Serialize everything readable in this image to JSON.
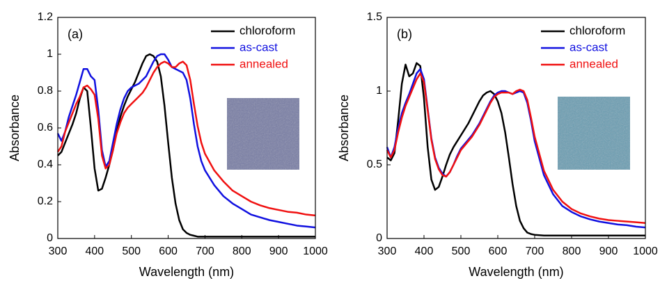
{
  "chart_data": [
    {
      "type": "line",
      "annotation": "(a)",
      "xlabel": "Wavelength (nm)",
      "ylabel": "Absorbance",
      "xlim": [
        300,
        1000
      ],
      "ylim": [
        0,
        1.2
      ],
      "xticks": [
        300,
        400,
        500,
        600,
        700,
        800,
        900,
        1000
      ],
      "yticks": [
        0,
        0.2,
        0.4,
        0.6,
        0.8,
        1,
        1.2
      ],
      "legend": "upper right",
      "x": [
        300,
        310,
        320,
        330,
        340,
        350,
        360,
        370,
        380,
        390,
        400,
        410,
        420,
        430,
        440,
        450,
        460,
        470,
        480,
        490,
        500,
        510,
        520,
        530,
        540,
        550,
        560,
        570,
        580,
        590,
        600,
        610,
        620,
        630,
        640,
        650,
        660,
        670,
        680,
        690,
        700,
        725,
        750,
        775,
        800,
        825,
        850,
        875,
        900,
        925,
        950,
        975,
        1000
      ],
      "series": [
        {
          "name": "chloroform",
          "color": "#000000",
          "values": [
            0.45,
            0.47,
            0.52,
            0.57,
            0.62,
            0.68,
            0.76,
            0.82,
            0.8,
            0.6,
            0.38,
            0.26,
            0.27,
            0.33,
            0.4,
            0.48,
            0.58,
            0.66,
            0.72,
            0.77,
            0.81,
            0.85,
            0.9,
            0.95,
            0.99,
            1.0,
            0.99,
            0.96,
            0.88,
            0.72,
            0.52,
            0.33,
            0.19,
            0.1,
            0.05,
            0.03,
            0.02,
            0.015,
            0.01,
            0.01,
            0.01,
            0.01,
            0.01,
            0.01,
            0.01,
            0.01,
            0.01,
            0.01,
            0.01,
            0.01,
            0.01,
            0.01,
            0.01
          ]
        },
        {
          "name": "as-cast",
          "color": "#1010e0",
          "values": [
            0.57,
            0.53,
            0.58,
            0.66,
            0.72,
            0.78,
            0.85,
            0.92,
            0.92,
            0.88,
            0.86,
            0.7,
            0.48,
            0.39,
            0.42,
            0.52,
            0.62,
            0.7,
            0.76,
            0.8,
            0.82,
            0.83,
            0.84,
            0.86,
            0.88,
            0.92,
            0.96,
            0.99,
            1.0,
            1.0,
            0.97,
            0.93,
            0.92,
            0.91,
            0.9,
            0.86,
            0.76,
            0.62,
            0.5,
            0.42,
            0.37,
            0.29,
            0.23,
            0.19,
            0.16,
            0.13,
            0.115,
            0.1,
            0.09,
            0.08,
            0.07,
            0.065,
            0.06
          ]
        },
        {
          "name": "annealed",
          "color": "#f01010",
          "values": [
            0.47,
            0.5,
            0.58,
            0.63,
            0.68,
            0.73,
            0.77,
            0.82,
            0.83,
            0.81,
            0.78,
            0.65,
            0.45,
            0.38,
            0.4,
            0.48,
            0.57,
            0.63,
            0.68,
            0.71,
            0.73,
            0.75,
            0.77,
            0.79,
            0.82,
            0.86,
            0.9,
            0.93,
            0.95,
            0.96,
            0.95,
            0.93,
            0.93,
            0.95,
            0.96,
            0.94,
            0.86,
            0.73,
            0.61,
            0.52,
            0.46,
            0.37,
            0.31,
            0.26,
            0.23,
            0.2,
            0.18,
            0.165,
            0.155,
            0.145,
            0.14,
            0.13,
            0.125
          ]
        }
      ]
    },
    {
      "type": "line",
      "annotation": "(b)",
      "xlabel": "Wavelength (nm)",
      "ylabel": "Absorbance",
      "xlim": [
        300,
        1000
      ],
      "ylim": [
        0,
        1.5
      ],
      "xticks": [
        300,
        400,
        500,
        600,
        700,
        800,
        900,
        1000
      ],
      "yticks": [
        0,
        0.5,
        1,
        1.5
      ],
      "legend": "upper right",
      "x": [
        300,
        310,
        320,
        330,
        340,
        350,
        360,
        370,
        380,
        390,
        400,
        410,
        420,
        430,
        440,
        450,
        460,
        470,
        480,
        490,
        500,
        510,
        520,
        530,
        540,
        550,
        560,
        570,
        580,
        590,
        600,
        610,
        620,
        630,
        640,
        650,
        660,
        670,
        680,
        690,
        700,
        725,
        750,
        775,
        800,
        825,
        850,
        875,
        900,
        925,
        950,
        975,
        1000
      ],
      "series": [
        {
          "name": "chloroform",
          "color": "#000000",
          "values": [
            0.55,
            0.53,
            0.58,
            0.8,
            1.05,
            1.18,
            1.1,
            1.12,
            1.19,
            1.17,
            0.95,
            0.62,
            0.4,
            0.33,
            0.35,
            0.42,
            0.5,
            0.57,
            0.62,
            0.66,
            0.7,
            0.74,
            0.78,
            0.83,
            0.88,
            0.93,
            0.97,
            0.99,
            1.0,
            0.98,
            0.93,
            0.85,
            0.72,
            0.55,
            0.37,
            0.22,
            0.12,
            0.07,
            0.04,
            0.03,
            0.025,
            0.02,
            0.02,
            0.02,
            0.02,
            0.02,
            0.02,
            0.02,
            0.02,
            0.02,
            0.02,
            0.02,
            0.02
          ]
        },
        {
          "name": "as-cast",
          "color": "#1010e0",
          "values": [
            0.62,
            0.55,
            0.62,
            0.75,
            0.85,
            0.92,
            0.98,
            1.05,
            1.12,
            1.15,
            1.08,
            0.88,
            0.68,
            0.55,
            0.48,
            0.44,
            0.42,
            0.45,
            0.5,
            0.56,
            0.61,
            0.64,
            0.67,
            0.7,
            0.74,
            0.78,
            0.83,
            0.88,
            0.93,
            0.97,
            0.99,
            1.0,
            1.0,
            0.99,
            0.98,
            0.99,
            1.0,
            0.99,
            0.92,
            0.8,
            0.66,
            0.43,
            0.3,
            0.22,
            0.18,
            0.15,
            0.13,
            0.115,
            0.105,
            0.095,
            0.09,
            0.08,
            0.075
          ]
        },
        {
          "name": "annealed",
          "color": "#f01010",
          "values": [
            0.6,
            0.55,
            0.6,
            0.72,
            0.82,
            0.9,
            0.96,
            1.02,
            1.08,
            1.12,
            1.06,
            0.87,
            0.67,
            0.54,
            0.47,
            0.43,
            0.42,
            0.45,
            0.5,
            0.55,
            0.6,
            0.63,
            0.66,
            0.69,
            0.73,
            0.77,
            0.82,
            0.87,
            0.92,
            0.96,
            0.98,
            0.99,
            0.99,
            0.99,
            0.98,
            1.0,
            1.01,
            1.0,
            0.94,
            0.82,
            0.69,
            0.46,
            0.33,
            0.25,
            0.2,
            0.17,
            0.15,
            0.135,
            0.125,
            0.12,
            0.115,
            0.11,
            0.105
          ]
        }
      ]
    }
  ]
}
